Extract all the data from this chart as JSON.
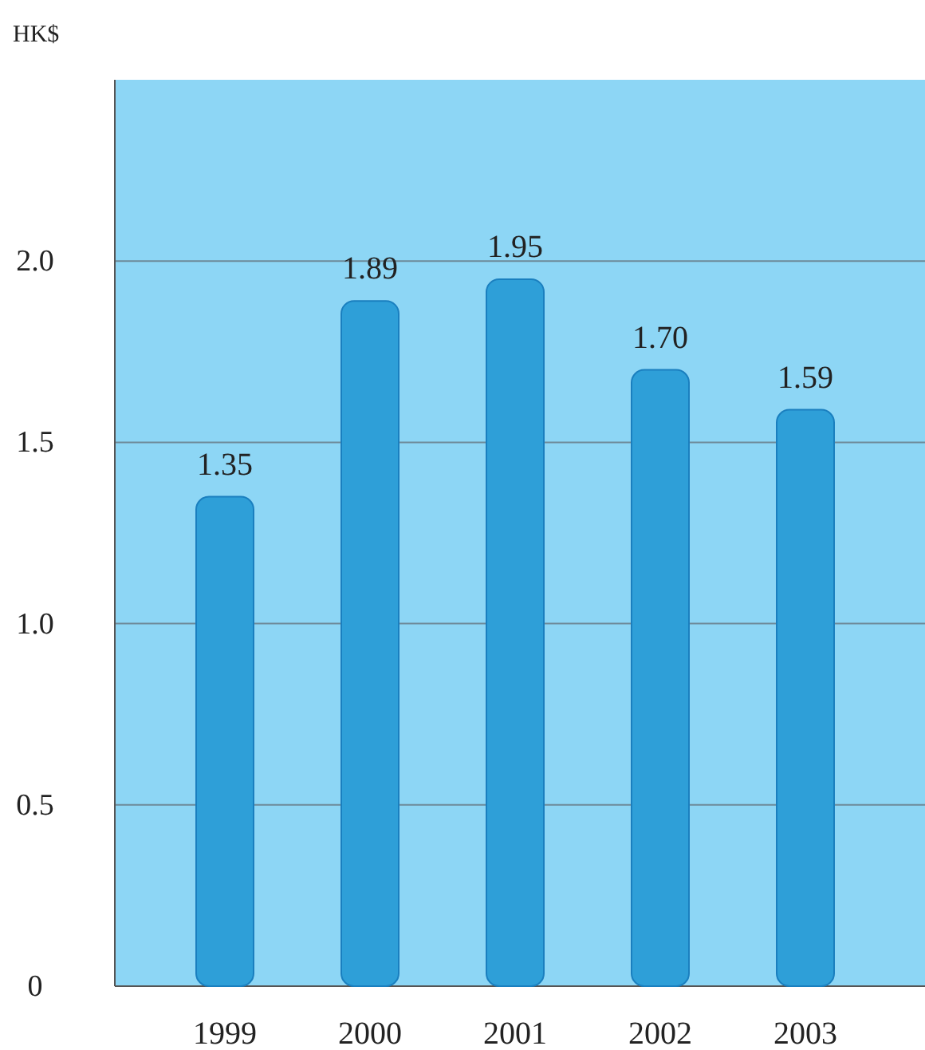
{
  "chart_data": {
    "type": "bar",
    "ylabel": "HK$",
    "categories": [
      "1999",
      "2000",
      "2001",
      "2002",
      "2003"
    ],
    "values": [
      1.35,
      1.89,
      1.95,
      1.7,
      1.59
    ],
    "value_labels": [
      "1.35",
      "1.89",
      "1.95",
      "1.70",
      "1.59"
    ],
    "color": "#2e9fd8",
    "grid": "y",
    "ylim": [
      0,
      2.5
    ],
    "yticks": [
      0,
      {
        "value": 0.5,
        "label": "0.5"
      },
      {
        "value": 1,
        "label": "1.0"
      },
      {
        "value": 1.5,
        "label": "1.5"
      },
      {
        "value": 2,
        "label": "2.0"
      }
    ]
  }
}
